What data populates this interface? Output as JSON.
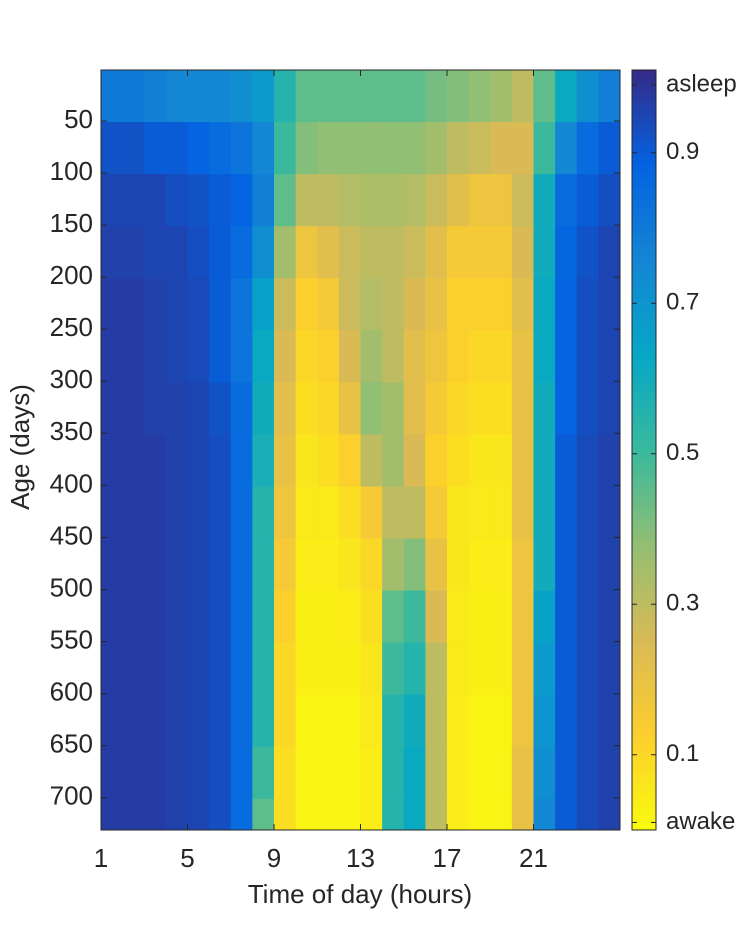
{
  "chart_data": {
    "type": "heatmap",
    "xlabel": "Time of day (hours)",
    "ylabel": "Age (days)",
    "xlim": [
      1,
      25
    ],
    "xticks": [
      1,
      5,
      9,
      13,
      17,
      21
    ],
    "ylim": [
      731,
      1
    ],
    "yticks": [
      50,
      100,
      150,
      200,
      250,
      300,
      350,
      400,
      450,
      500,
      550,
      600,
      650,
      700
    ],
    "xbins": [
      1,
      2,
      3,
      4,
      5,
      6,
      7,
      8,
      9,
      10,
      11,
      12,
      13,
      14,
      15,
      16,
      17,
      18,
      19,
      20,
      21,
      22,
      23,
      24,
      25
    ],
    "ybins": [
      1,
      51,
      101,
      151,
      201,
      251,
      301,
      351,
      401,
      451,
      501,
      551,
      601,
      651,
      701,
      731
    ],
    "values": [
      [
        0.8,
        0.8,
        0.78,
        0.75,
        0.75,
        0.75,
        0.72,
        0.68,
        0.55,
        0.45,
        0.45,
        0.45,
        0.45,
        0.45,
        0.45,
        0.42,
        0.4,
        0.38,
        0.35,
        0.3,
        0.45,
        0.62,
        0.72,
        0.78
      ],
      [
        0.92,
        0.92,
        0.9,
        0.9,
        0.88,
        0.85,
        0.82,
        0.75,
        0.5,
        0.4,
        0.38,
        0.38,
        0.38,
        0.38,
        0.38,
        0.35,
        0.3,
        0.28,
        0.25,
        0.25,
        0.5,
        0.75,
        0.85,
        0.9
      ],
      [
        0.95,
        0.95,
        0.95,
        0.93,
        0.92,
        0.9,
        0.88,
        0.78,
        0.45,
        0.3,
        0.3,
        0.32,
        0.33,
        0.33,
        0.32,
        0.28,
        0.22,
        0.18,
        0.18,
        0.28,
        0.6,
        0.85,
        0.9,
        0.93
      ],
      [
        0.96,
        0.96,
        0.95,
        0.95,
        0.93,
        0.9,
        0.85,
        0.72,
        0.35,
        0.18,
        0.22,
        0.28,
        0.3,
        0.3,
        0.28,
        0.22,
        0.15,
        0.15,
        0.15,
        0.25,
        0.6,
        0.87,
        0.92,
        0.95
      ],
      [
        0.97,
        0.97,
        0.96,
        0.95,
        0.94,
        0.9,
        0.82,
        0.65,
        0.28,
        0.12,
        0.15,
        0.28,
        0.32,
        0.3,
        0.25,
        0.2,
        0.12,
        0.12,
        0.12,
        0.22,
        0.62,
        0.88,
        0.93,
        0.95
      ],
      [
        0.97,
        0.97,
        0.96,
        0.95,
        0.94,
        0.9,
        0.82,
        0.62,
        0.25,
        0.1,
        0.12,
        0.25,
        0.35,
        0.3,
        0.22,
        0.18,
        0.12,
        0.1,
        0.1,
        0.2,
        0.62,
        0.88,
        0.93,
        0.95
      ],
      [
        0.97,
        0.97,
        0.96,
        0.96,
        0.95,
        0.92,
        0.85,
        0.6,
        0.22,
        0.08,
        0.1,
        0.2,
        0.38,
        0.35,
        0.22,
        0.15,
        0.1,
        0.08,
        0.08,
        0.2,
        0.6,
        0.88,
        0.93,
        0.95
      ],
      [
        0.97,
        0.97,
        0.97,
        0.96,
        0.95,
        0.93,
        0.85,
        0.58,
        0.2,
        0.06,
        0.08,
        0.12,
        0.3,
        0.35,
        0.25,
        0.12,
        0.08,
        0.06,
        0.06,
        0.2,
        0.6,
        0.9,
        0.94,
        0.96
      ],
      [
        0.97,
        0.97,
        0.97,
        0.96,
        0.95,
        0.93,
        0.85,
        0.55,
        0.18,
        0.05,
        0.05,
        0.08,
        0.15,
        0.3,
        0.3,
        0.15,
        0.06,
        0.05,
        0.05,
        0.2,
        0.6,
        0.9,
        0.94,
        0.96
      ],
      [
        0.97,
        0.97,
        0.97,
        0.96,
        0.95,
        0.93,
        0.85,
        0.55,
        0.15,
        0.04,
        0.04,
        0.06,
        0.1,
        0.35,
        0.4,
        0.2,
        0.06,
        0.04,
        0.04,
        0.18,
        0.6,
        0.9,
        0.94,
        0.96
      ],
      [
        0.97,
        0.97,
        0.97,
        0.96,
        0.95,
        0.93,
        0.85,
        0.55,
        0.12,
        0.03,
        0.03,
        0.04,
        0.08,
        0.45,
        0.5,
        0.25,
        0.05,
        0.03,
        0.03,
        0.18,
        0.65,
        0.9,
        0.94,
        0.96
      ],
      [
        0.97,
        0.97,
        0.97,
        0.96,
        0.95,
        0.93,
        0.85,
        0.55,
        0.1,
        0.03,
        0.03,
        0.03,
        0.06,
        0.5,
        0.55,
        0.3,
        0.05,
        0.03,
        0.03,
        0.18,
        0.68,
        0.9,
        0.94,
        0.96
      ],
      [
        0.97,
        0.97,
        0.97,
        0.96,
        0.95,
        0.93,
        0.85,
        0.55,
        0.1,
        0.02,
        0.02,
        0.02,
        0.05,
        0.55,
        0.6,
        0.3,
        0.04,
        0.02,
        0.02,
        0.18,
        0.7,
        0.9,
        0.94,
        0.96
      ],
      [
        0.97,
        0.97,
        0.97,
        0.96,
        0.95,
        0.93,
        0.85,
        0.5,
        0.08,
        0.02,
        0.02,
        0.02,
        0.04,
        0.55,
        0.62,
        0.3,
        0.04,
        0.02,
        0.02,
        0.2,
        0.72,
        0.9,
        0.94,
        0.96
      ],
      [
        0.97,
        0.97,
        0.97,
        0.96,
        0.95,
        0.93,
        0.85,
        0.45,
        0.08,
        0.02,
        0.02,
        0.02,
        0.04,
        0.55,
        0.62,
        0.3,
        0.04,
        0.02,
        0.02,
        0.2,
        0.75,
        0.9,
        0.94,
        0.96
      ]
    ],
    "clim": [
      0,
      1.01
    ],
    "cticks": [
      {
        "value": 0.01,
        "label": "awake"
      },
      0.1,
      0.3,
      0.5,
      0.7,
      0.9,
      {
        "value": 0.99,
        "label": "asleep"
      }
    ],
    "colormap": [
      "#f9fb0e",
      "#fcce2e",
      "#d9ba56",
      "#92bf73",
      "#38b99e",
      "#06a7c6",
      "#1485d4",
      "#0363e1",
      "#352a87"
    ]
  }
}
